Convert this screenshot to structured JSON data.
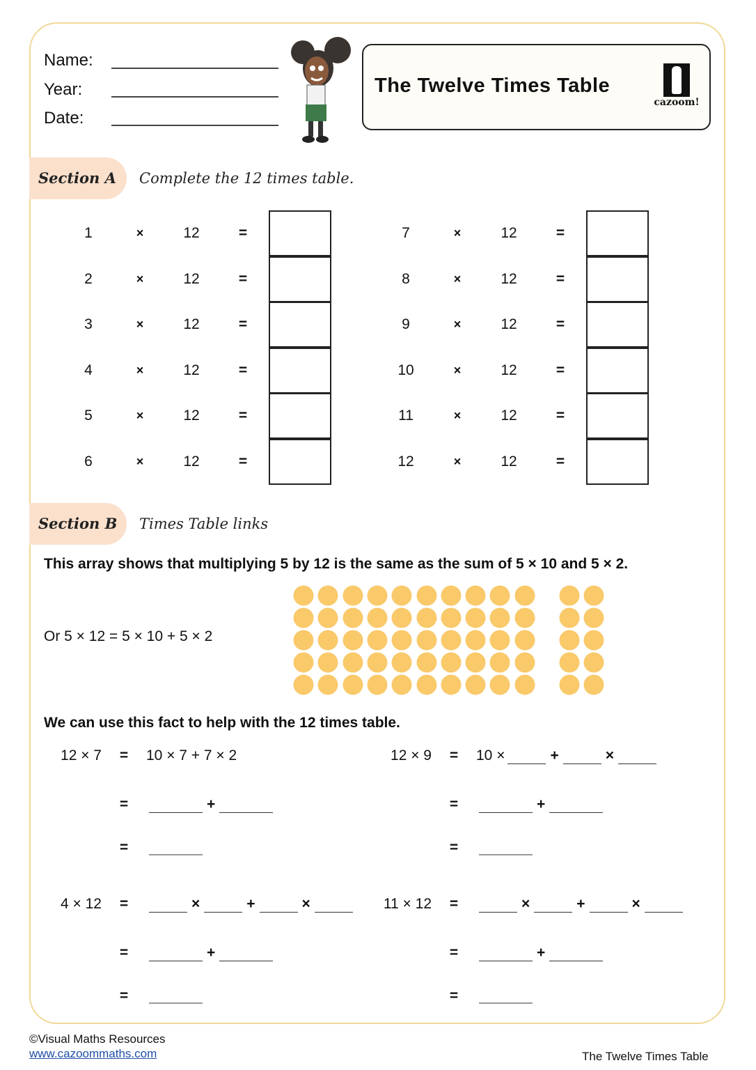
{
  "header": {
    "name_label": "Name:",
    "year_label": "Year:",
    "date_label": "Date:",
    "title": "The Twelve Times Table",
    "logo_text": "cazoom!"
  },
  "section_a": {
    "badge": "Section A",
    "instruction": "Complete the 12 times table.",
    "times_symbol": "×",
    "multiplier": "12",
    "equals": "=",
    "left_numbers": [
      "1",
      "2",
      "3",
      "4",
      "5",
      "6"
    ],
    "right_numbers": [
      "7",
      "8",
      "9",
      "10",
      "11",
      "12"
    ]
  },
  "section_b": {
    "badge": "Section B",
    "instruction": "Times Table links",
    "intro": "This array shows that multiplying 5 by 12 is the same as the sum of 5 × 10 and 5 × 2.",
    "array_caption": "Or 5 × 12 = 5 × 10 + 5 × 2",
    "array": {
      "rows": 5,
      "group_a_cols": 10,
      "group_b_cols": 2,
      "dot_color": "#f9c96a"
    },
    "fact_text": "We can use this fact to help with the 12 times table.",
    "problems": [
      {
        "label": "12 × 7",
        "lines": [
          [
            {
              "t": "10 × 7 + 7 × 2"
            }
          ],
          [
            {
              "b": "long"
            },
            {
              "o": "+"
            },
            {
              "b": "long"
            }
          ],
          [
            {
              "b": "long"
            }
          ]
        ]
      },
      {
        "label": "12 × 9",
        "lines": [
          [
            {
              "t": "10 ×"
            },
            {
              "b": "short"
            },
            {
              "o": "+"
            },
            {
              "b": "short"
            },
            {
              "o": "×"
            },
            {
              "b": "short"
            }
          ],
          [
            {
              "b": "long"
            },
            {
              "o": "+"
            },
            {
              "b": "long"
            }
          ],
          [
            {
              "b": "long"
            }
          ]
        ]
      },
      {
        "label": "4 × 12",
        "lines": [
          [
            {
              "b": "short"
            },
            {
              "o": "×"
            },
            {
              "b": "short"
            },
            {
              "o": "+"
            },
            {
              "b": "short"
            },
            {
              "o": "×"
            },
            {
              "b": "short"
            }
          ],
          [
            {
              "b": "long"
            },
            {
              "o": "+"
            },
            {
              "b": "long"
            }
          ],
          [
            {
              "b": "long"
            }
          ]
        ]
      },
      {
        "label": "11 × 12",
        "lines": [
          [
            {
              "b": "short"
            },
            {
              "o": "×"
            },
            {
              "b": "short"
            },
            {
              "o": "+"
            },
            {
              "b": "short"
            },
            {
              "o": "×"
            },
            {
              "b": "short"
            }
          ],
          [
            {
              "b": "long"
            },
            {
              "o": "+"
            },
            {
              "b": "long"
            }
          ],
          [
            {
              "b": "long"
            }
          ]
        ]
      }
    ],
    "equals": "="
  },
  "footer": {
    "copyright": "©Visual Maths Resources",
    "website": "www.cazoommaths.com",
    "doc_title": "The Twelve Times Table"
  }
}
